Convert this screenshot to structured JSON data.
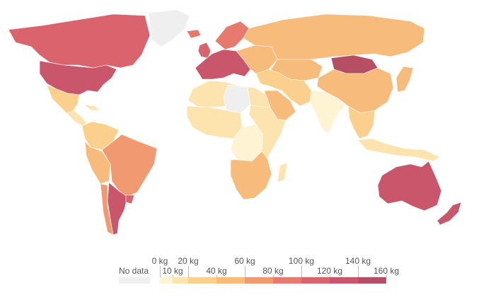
{
  "colors": {
    "no_data": "#efefef",
    "bins": [
      "#fef4d4",
      "#fde3ad",
      "#fbd08c",
      "#f7bb7b",
      "#f19a72",
      "#e67a6e",
      "#d9646e",
      "#c9566a",
      "#b64f63"
    ]
  },
  "legend": {
    "no_data_label": "No data",
    "bin_labels": [
      "0 kg",
      "10 kg",
      "20 kg",
      "40 kg",
      "60 kg",
      "80 kg",
      "100 kg",
      "120 kg",
      "140 kg",
      "160 kg"
    ]
  },
  "regions": [
    {
      "name": "greenland",
      "bin": -1
    },
    {
      "name": "canada",
      "bin": 6
    },
    {
      "name": "usa",
      "bin": 7
    },
    {
      "name": "mexico",
      "bin": 2
    },
    {
      "name": "central-america",
      "bin": 1
    },
    {
      "name": "cuba",
      "bin": 1
    },
    {
      "name": "colombia-venezuela",
      "bin": 2
    },
    {
      "name": "peru-bolivia",
      "bin": 3
    },
    {
      "name": "brazil",
      "bin": 4
    },
    {
      "name": "argentina",
      "bin": 7
    },
    {
      "name": "chile",
      "bin": 4
    },
    {
      "name": "uruguay",
      "bin": 6
    },
    {
      "name": "iceland",
      "bin": 5
    },
    {
      "name": "uk-ireland",
      "bin": 6
    },
    {
      "name": "western-europe",
      "bin": 7
    },
    {
      "name": "scandinavia",
      "bin": 5
    },
    {
      "name": "eastern-europe",
      "bin": 3
    },
    {
      "name": "russia",
      "bin": 3
    },
    {
      "name": "kazakhstan",
      "bin": 3
    },
    {
      "name": "mongolia",
      "bin": 8
    },
    {
      "name": "china",
      "bin": 3
    },
    {
      "name": "india",
      "bin": 0
    },
    {
      "name": "middle-east",
      "bin": 2
    },
    {
      "name": "saudi-arabia",
      "bin": 3
    },
    {
      "name": "north-africa",
      "bin": 1
    },
    {
      "name": "sahara-nodata",
      "bin": -1
    },
    {
      "name": "west-africa",
      "bin": 1
    },
    {
      "name": "central-africa",
      "bin": 0
    },
    {
      "name": "east-africa",
      "bin": 1
    },
    {
      "name": "southern-africa",
      "bin": 3
    },
    {
      "name": "madagascar",
      "bin": 1
    },
    {
      "name": "southeast-asia",
      "bin": 2
    },
    {
      "name": "japan-korea",
      "bin": 3
    },
    {
      "name": "indonesia",
      "bin": 1
    },
    {
      "name": "australia",
      "bin": 7
    },
    {
      "name": "new-zealand",
      "bin": 7
    }
  ]
}
